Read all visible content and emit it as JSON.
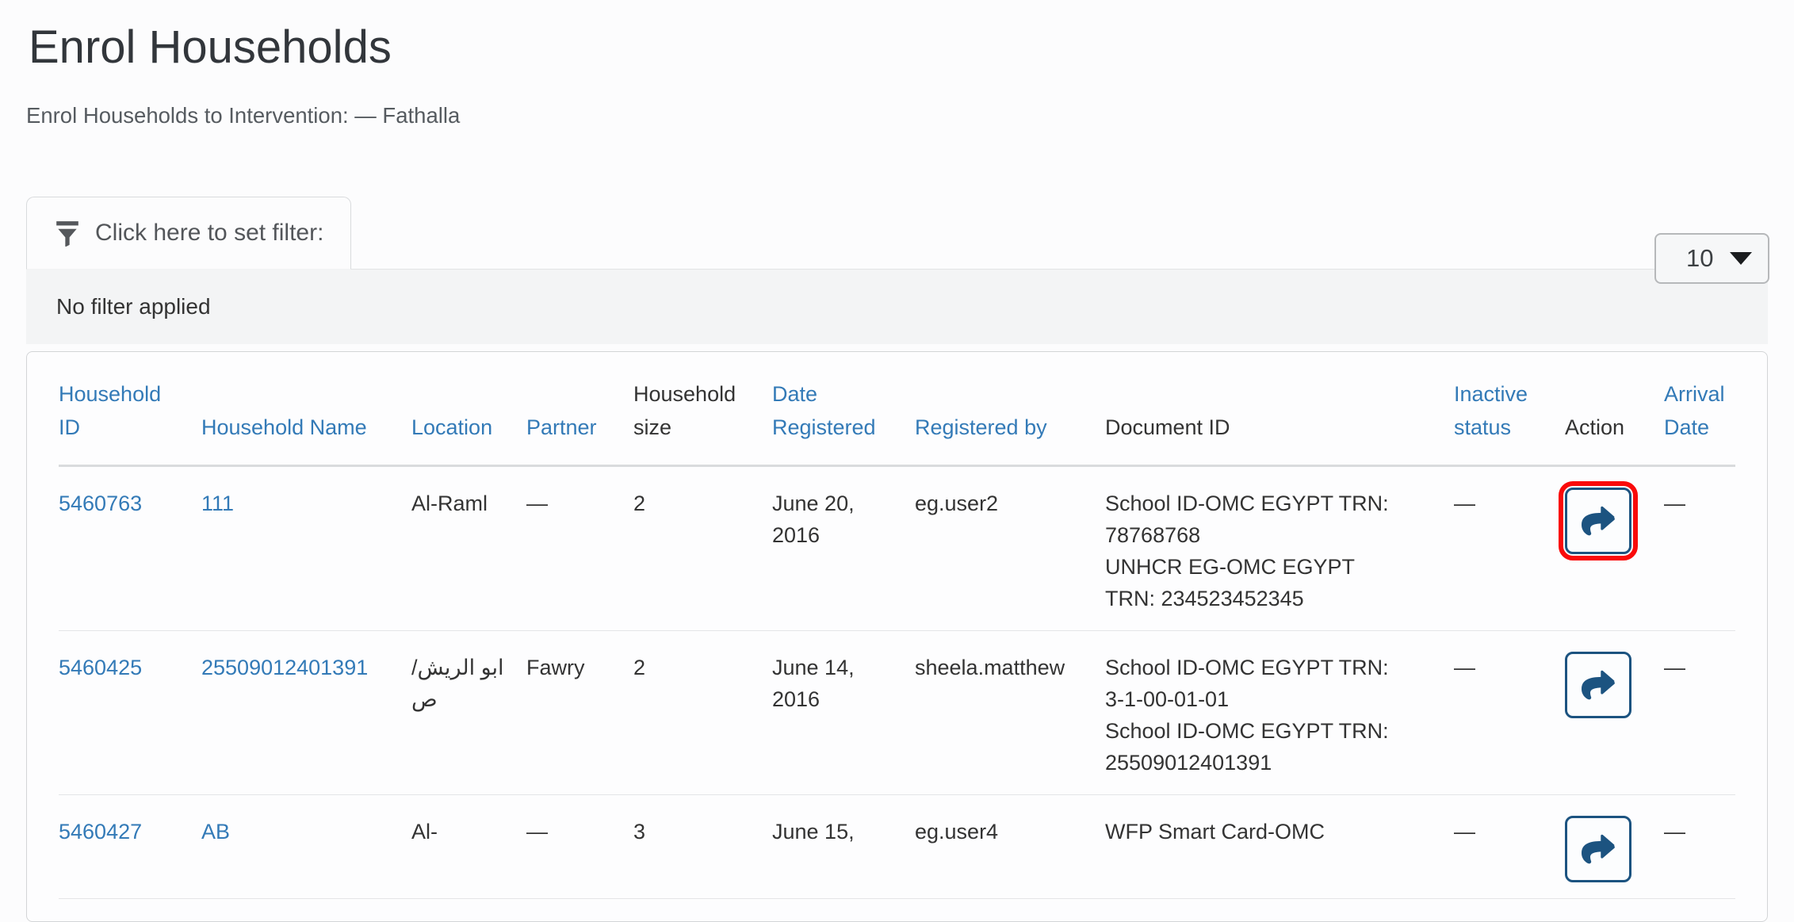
{
  "page": {
    "title": "Enrol Households",
    "subtitle": "Enrol Households to Intervention: — Fathalla"
  },
  "filter": {
    "tab_label": "Click here to set filter:",
    "tab_icon": "filter-funnel-icon",
    "status_text": "No filter applied"
  },
  "page_size_dropdown": {
    "value": "10",
    "caret_icon": "caret-down-icon"
  },
  "table": {
    "columns": [
      {
        "label": "Household ID",
        "sortable": true
      },
      {
        "label": "Household Name",
        "sortable": true
      },
      {
        "label": "Location",
        "sortable": true
      },
      {
        "label": "Partner",
        "sortable": true
      },
      {
        "label": "Household size",
        "sortable": false
      },
      {
        "label": "Date Registered",
        "sortable": true
      },
      {
        "label": "Registered by",
        "sortable": true
      },
      {
        "label": "Document ID",
        "sortable": false
      },
      {
        "label": "Inactive status",
        "sortable": true
      },
      {
        "label": "Action",
        "sortable": false
      },
      {
        "label": "Arrival Date",
        "sortable": true
      }
    ],
    "rows": [
      {
        "household_id": "5460763",
        "household_name": "111",
        "location": "Al-Raml",
        "partner": "—",
        "household_size": "2",
        "date_registered": "June 20, 2016",
        "registered_by": "eg.user2",
        "document_ids": [
          "School ID-OMC EGYPT TRN: 78768768",
          "UNHCR EG-OMC EGYPT TRN: 234523452345"
        ],
        "inactive_status": "—",
        "action_icon": "share-arrow-icon",
        "action_highlighted": true,
        "arrival_date": "—"
      },
      {
        "household_id": "5460425",
        "household_name": "25509012401391",
        "location": "ابو الريش/ص",
        "partner": "Fawry",
        "household_size": "2",
        "date_registered": "June 14, 2016",
        "registered_by": "sheela.matthew",
        "document_ids": [
          "School ID-OMC EGYPT TRN: 3-1-00-01-01",
          "School ID-OMC EGYPT TRN: 25509012401391"
        ],
        "inactive_status": "—",
        "action_icon": "share-arrow-icon",
        "action_highlighted": false,
        "arrival_date": "—"
      },
      {
        "household_id": "5460427",
        "household_name": "AB",
        "location": "Al-",
        "partner": "—",
        "household_size": "3",
        "date_registered": "June 15,",
        "registered_by": "eg.user4",
        "document_ids": [
          "WFP Smart Card-OMC"
        ],
        "inactive_status": "—",
        "action_icon": "share-arrow-icon",
        "action_highlighted": false,
        "arrival_date": "—"
      }
    ]
  },
  "colors": {
    "link_blue": "#337ab7",
    "action_navy": "#1c5380",
    "highlight_red": "#fa0a0a",
    "filter_panel_bg": "#f3f4f5"
  }
}
